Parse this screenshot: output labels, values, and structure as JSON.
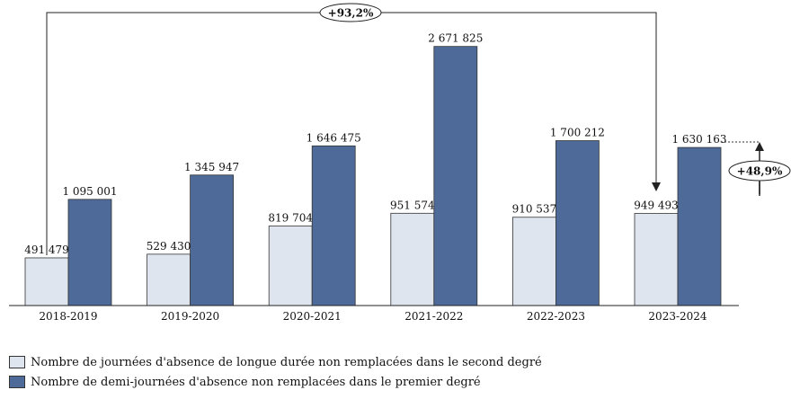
{
  "chart_data": {
    "type": "bar",
    "categories": [
      "2018-2019",
      "2019-2020",
      "2020-2021",
      "2021-2022",
      "2022-2023",
      "2023-2024"
    ],
    "series": [
      {
        "name": "Nombre de journées d'absence de longue durée non remplacées dans le second degré",
        "values": [
          491479,
          529430,
          819704,
          951574,
          910537,
          949493
        ],
        "labels": [
          "491 479",
          "529 430",
          "819 704",
          "951 574",
          "910 537",
          "949 493"
        ],
        "color": "#dfe5ef"
      },
      {
        "name": "Nombre de demi-journées d'absence non remplacées dans le premier degré",
        "values": [
          1095001,
          1345947,
          1646475,
          2671825,
          1700212,
          1630163
        ],
        "labels": [
          "1 095 001",
          "1 345 947",
          "1 646 475",
          "2 671 825",
          "1 700 212",
          "1 630 163"
        ],
        "color": "#4d6a99"
      }
    ],
    "ylim": [
      0,
      2780000
    ],
    "annotations": {
      "overall_change": "+93,2%",
      "premier_degre_change": "+48,9%"
    },
    "legend_position": "bottom-left",
    "grid": false
  }
}
